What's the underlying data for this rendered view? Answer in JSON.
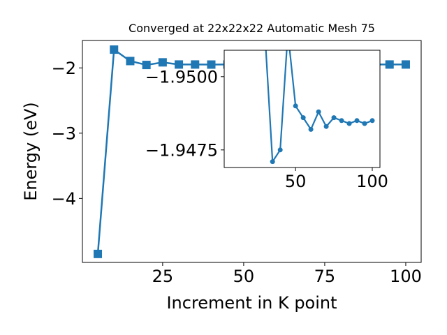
{
  "chart_data": [
    {
      "type": "line",
      "title": "Converged at 22x22x22 Automatic Mesh 75",
      "xlabel": "Increment in K point",
      "ylabel": "Energy (eV)",
      "xlim": [
        0.25,
        104.75
      ],
      "ylim": [
        -4.98,
        -1.58
      ],
      "xticks": [
        25,
        50,
        75,
        100
      ],
      "yticks": [
        -4,
        -3,
        -2
      ],
      "marker": "square",
      "color": "#1f77b4",
      "x": [
        5,
        10,
        15,
        20,
        25,
        30,
        35,
        40,
        45,
        50,
        55,
        60,
        65,
        70,
        75,
        80,
        85,
        90,
        95,
        100
      ],
      "y": [
        -4.85,
        -1.72,
        -1.895,
        -1.955,
        -1.915,
        -1.948,
        -1.948,
        -1.949,
        -1.948,
        -1.948,
        -1.948,
        -1.948,
        -1.948,
        -1.948,
        -1.948,
        -1.948,
        -1.948,
        -1.948,
        -1.948,
        -1.948
      ]
    },
    {
      "type": "line",
      "title": "",
      "xlabel": "",
      "ylabel": "",
      "xlim": [
        3.5,
        105
      ],
      "ylim": [
        -1.9469,
        -1.9509
      ],
      "xticks": [
        50,
        100
      ],
      "yticks": [
        -1.95,
        -1.9475
      ],
      "ytick_labels": [
        "−1.9500",
        "−1.9475"
      ],
      "marker": "circle",
      "color": "#1f77b4",
      "x": [
        30,
        35,
        40,
        45,
        50,
        55,
        60,
        65,
        70,
        75,
        80,
        85,
        90,
        95,
        100
      ],
      "y": [
        -1.9515,
        -1.9471,
        -1.9475,
        -1.9515,
        -1.949,
        -1.9486,
        -1.9482,
        -1.9488,
        -1.9483,
        -1.9486,
        -1.9485,
        -1.9484,
        -1.9485,
        -1.9484,
        -1.9485
      ]
    }
  ]
}
